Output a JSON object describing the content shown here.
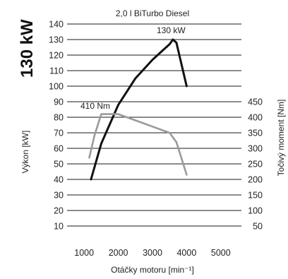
{
  "chart_data": {
    "type": "line",
    "title": "2,0 l BiTurbo Diesel",
    "headline": "130 kW",
    "xlabel": "Otáčky motoru [min⁻¹]",
    "ylabel_left": "Výkon [kW]",
    "ylabel_right": "Točivý moment [Nm]",
    "xlim": [
      500,
      5500
    ],
    "x_ticks": [
      1000,
      2000,
      3000,
      4000,
      5000
    ],
    "ylim_left": [
      0,
      140
    ],
    "y_ticks_left": [
      10,
      20,
      30,
      40,
      50,
      60,
      70,
      80,
      90,
      100,
      110,
      120,
      130,
      140
    ],
    "ylim_right": [
      0,
      450
    ],
    "y_ticks_right": [
      50,
      100,
      150,
      200,
      250,
      300,
      350,
      400,
      450
    ],
    "grid": true,
    "series": [
      {
        "name": "Výkon",
        "axis": "left",
        "color": "#111111",
        "x": [
          1200,
          1500,
          2000,
          2500,
          3000,
          3300,
          3500,
          3600,
          3700,
          4000
        ],
        "y": [
          40,
          63,
          88,
          105,
          117,
          123,
          127,
          130,
          128,
          100
        ],
        "peak_label": "130 kW"
      },
      {
        "name": "Točivý moment",
        "axis": "right",
        "color": "#9a9a9a",
        "x": [
          1150,
          1300,
          1500,
          2000,
          2500,
          3000,
          3500,
          3700,
          4000
        ],
        "y": [
          270,
          340,
          410,
          410,
          390,
          370,
          350,
          320,
          215
        ],
        "peak_label": "410 Nm"
      }
    ]
  }
}
